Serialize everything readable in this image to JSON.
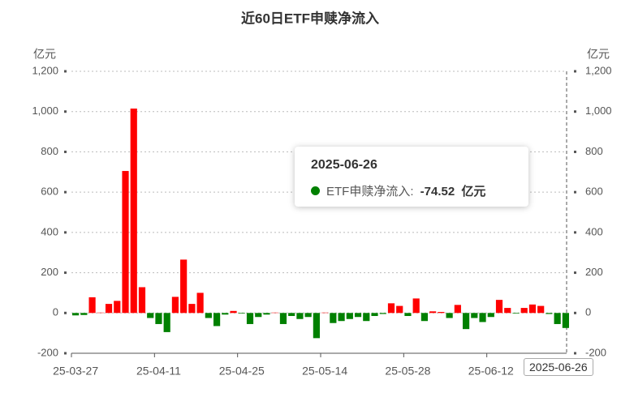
{
  "chart_data": {
    "type": "bar",
    "title": "近60日ETF申赎净流入",
    "y_unit": "亿元",
    "categories": [
      "25-03-27",
      null,
      null,
      null,
      null,
      null,
      null,
      null,
      null,
      null,
      "25-04-11",
      null,
      null,
      null,
      null,
      null,
      null,
      null,
      null,
      null,
      "25-04-25",
      null,
      null,
      null,
      null,
      null,
      null,
      null,
      null,
      null,
      "25-05-14",
      null,
      null,
      null,
      null,
      null,
      null,
      null,
      null,
      null,
      "25-05-28",
      null,
      null,
      null,
      null,
      null,
      null,
      null,
      null,
      null,
      "25-06-12",
      null,
      null,
      null,
      null,
      null,
      null,
      null,
      null,
      null
    ],
    "values": [
      -12,
      -10,
      78,
      2,
      45,
      60,
      705,
      1015,
      128,
      -25,
      -55,
      -95,
      80,
      265,
      45,
      100,
      -25,
      -65,
      -8,
      10,
      -3,
      -55,
      -20,
      -8,
      2,
      -55,
      -15,
      -30,
      -20,
      -125,
      2,
      -50,
      -40,
      -30,
      -20,
      -40,
      -15,
      -5,
      48,
      35,
      -15,
      72,
      -40,
      8,
      5,
      -25,
      40,
      -80,
      -25,
      -45,
      -20,
      65,
      25,
      -3,
      25,
      42,
      35,
      -5,
      -55,
      -74.52
    ],
    "up_color": "#ff0000",
    "down_color": "#008000",
    "ylim": [
      -200,
      1200
    ],
    "yticks": [
      -200,
      0,
      200,
      400,
      600,
      800,
      {
        "value": 1000,
        "label": "1,000"
      },
      {
        "value": 1200,
        "label": "1,200"
      }
    ],
    "y2lim": [
      -200,
      1200
    ],
    "y2ticks": [
      -200,
      0,
      200,
      400,
      600,
      800,
      {
        "value": 1000,
        "label": "1,000"
      },
      {
        "value": 1200,
        "label": "1,200"
      }
    ],
    "grid": true,
    "tooltip": {
      "date": "2025-06-26",
      "label": "ETF申赎净流入:",
      "index": 59
    }
  }
}
